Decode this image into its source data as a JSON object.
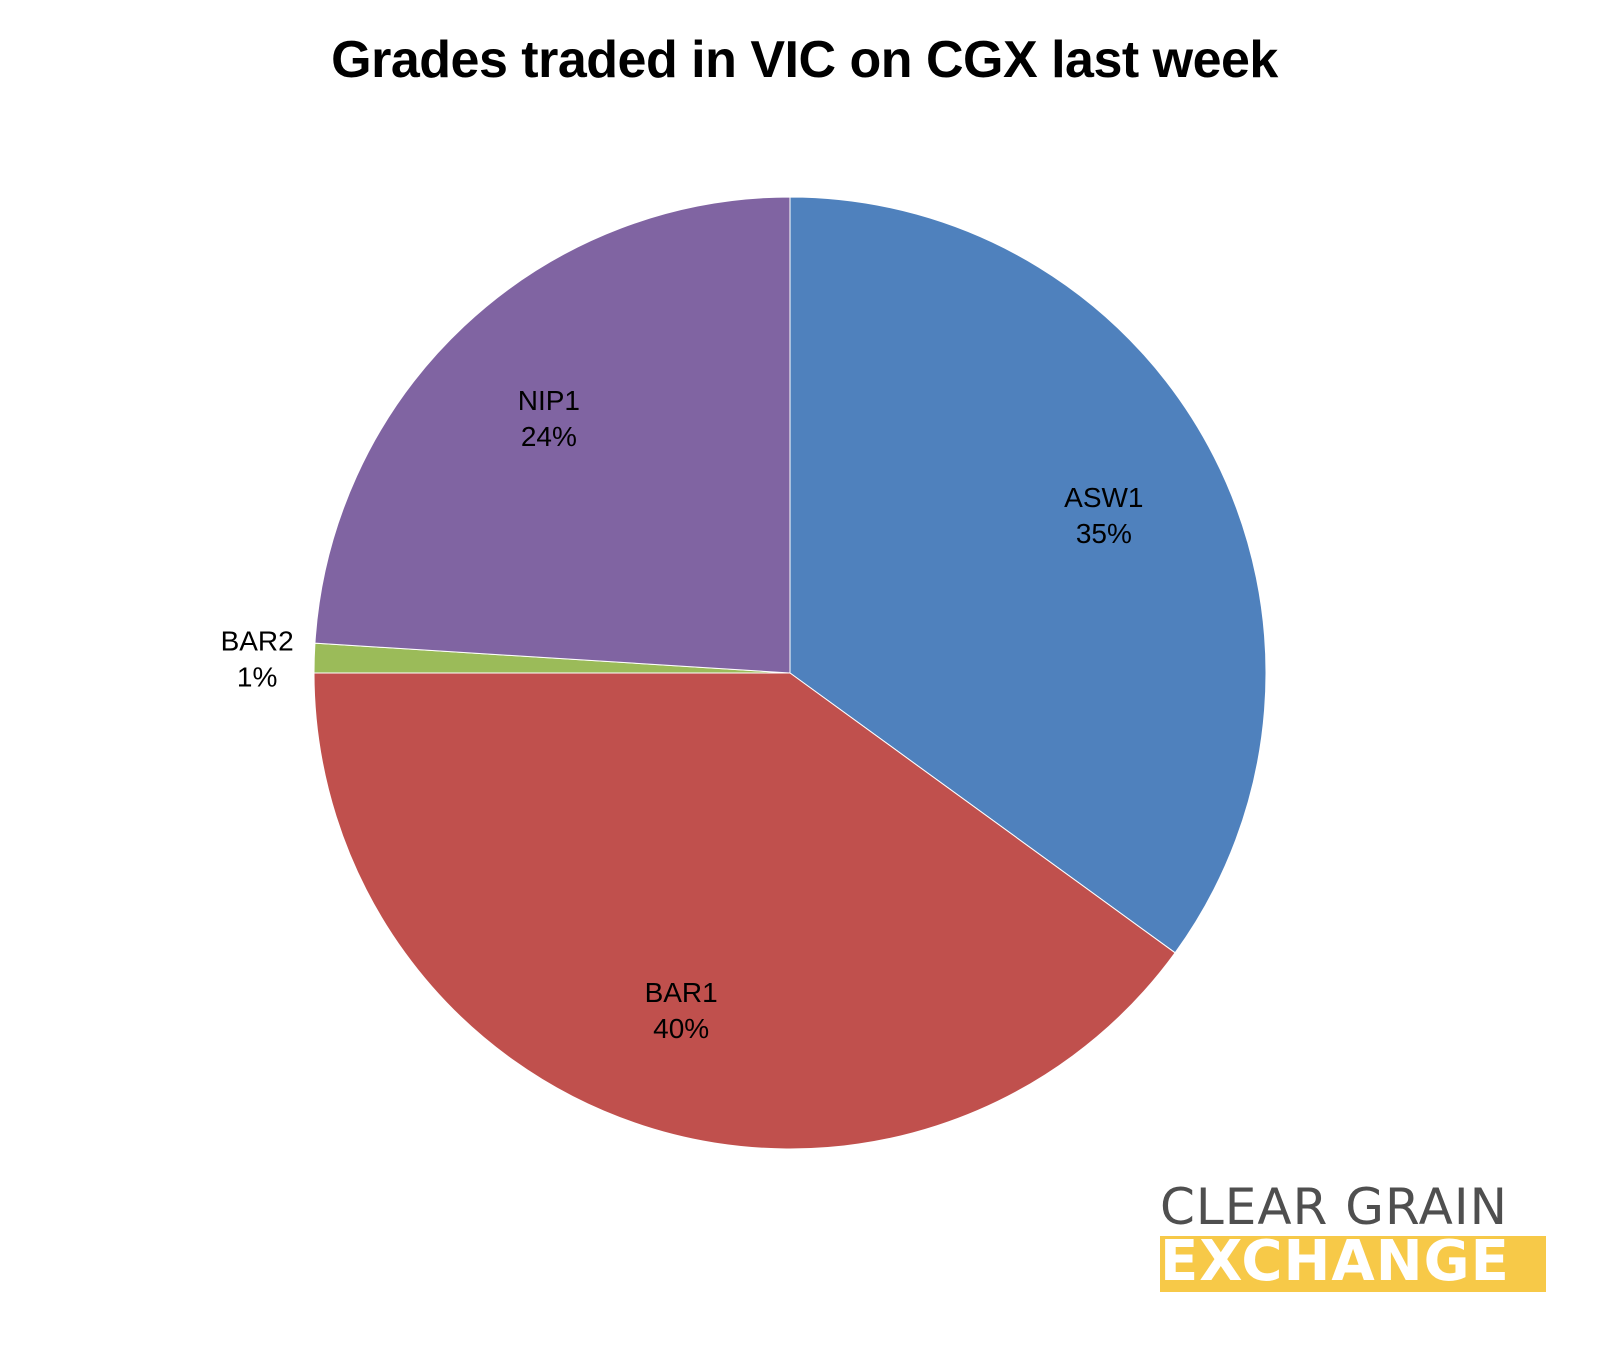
{
  "chart_data": {
    "type": "pie",
    "title": "Grades traded in VIC on CGX last week",
    "slices": [
      {
        "label": "ASW1",
        "value": 35,
        "value_label": "35%",
        "color": "#4f81bd"
      },
      {
        "label": "BAR1",
        "value": 40,
        "value_label": "40%",
        "color": "#c0504d"
      },
      {
        "label": "BAR2",
        "value": 1,
        "value_label": "1%",
        "color": "#9bbb59"
      },
      {
        "label": "NIP1",
        "value": 24,
        "value_label": "24%",
        "color": "#8064a2"
      }
    ]
  },
  "logo": {
    "line1": "CLEAR GRAIN",
    "line2": "EXCHANGE",
    "accent_color": "#f7c948"
  }
}
